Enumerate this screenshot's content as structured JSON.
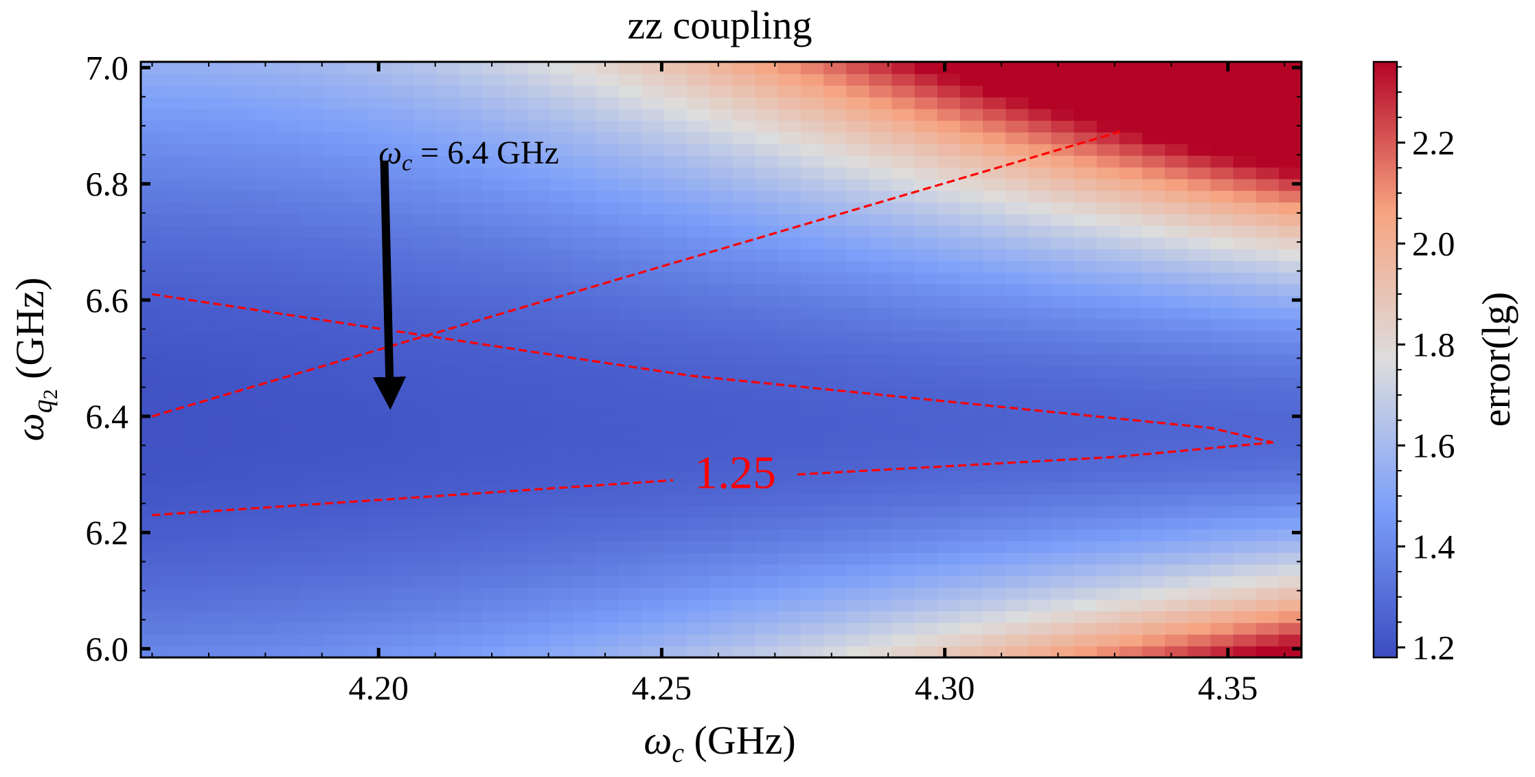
{
  "chart_data": {
    "type": "heatmap",
    "title": "zz coupling",
    "xlabel": "ωc (GHz)",
    "ylabel": "ωq2 (GHz)",
    "xlim": [
      4.158,
      4.363
    ],
    "ylim": [
      5.985,
      7.01
    ],
    "x_ticks": [
      4.2,
      4.25,
      4.3,
      4.35
    ],
    "x_tick_labels": [
      "4.20",
      "4.25",
      "4.30",
      "4.35"
    ],
    "y_ticks": [
      6.0,
      6.2,
      6.4,
      6.6,
      6.8,
      7.0
    ],
    "y_tick_labels": [
      "6.0",
      "6.2",
      "6.4",
      "6.6",
      "6.8",
      "7.0"
    ],
    "grid": false,
    "colorbar": {
      "label": "error(lg)",
      "colormap": "coolwarm",
      "range": [
        1.18,
        2.36
      ],
      "ticks": [
        1.2,
        1.4,
        1.6,
        1.8,
        2.0,
        2.2
      ],
      "tick_labels": [
        "1.2",
        "1.4",
        "1.6",
        "1.8",
        "2.0",
        "2.2"
      ]
    },
    "heatmap": {
      "nx": 51,
      "ny": 51,
      "x_range": [
        4.158,
        4.363
      ],
      "y_range": [
        5.985,
        7.01
      ],
      "minimum_valley_y": 6.38,
      "min_value": 1.2,
      "max_value": 2.36
    },
    "contour": {
      "level": 1.25,
      "level_label": "1.25",
      "color": "#ff0000",
      "style": "dashed",
      "lines": [
        {
          "name": "upper",
          "points": [
            [
              4.16,
              6.61
            ],
            [
              4.255,
              6.47
            ],
            [
              4.347,
              6.38
            ],
            [
              4.358,
              6.355
            ]
          ]
        },
        {
          "name": "lower-left",
          "points": [
            [
              4.16,
              6.23
            ],
            [
              4.252,
              6.29
            ]
          ]
        },
        {
          "name": "lower-right",
          "points": [
            [
              4.274,
              6.3
            ],
            [
              4.33,
              6.33
            ],
            [
              4.358,
              6.355
            ]
          ]
        },
        {
          "name": "diagonal",
          "points": [
            [
              4.16,
              6.4
            ],
            [
              4.331,
              6.89
            ]
          ]
        }
      ],
      "label_position": [
        4.263,
        6.295
      ]
    },
    "annotation": {
      "text_symbol": "ω",
      "text_subscript": "c",
      "text_rest": " = 6.4 GHz",
      "text_anchor": [
        4.2,
        6.835
      ],
      "arrow_start": [
        4.201,
        6.84
      ],
      "arrow_end": [
        4.202,
        6.43
      ]
    }
  }
}
